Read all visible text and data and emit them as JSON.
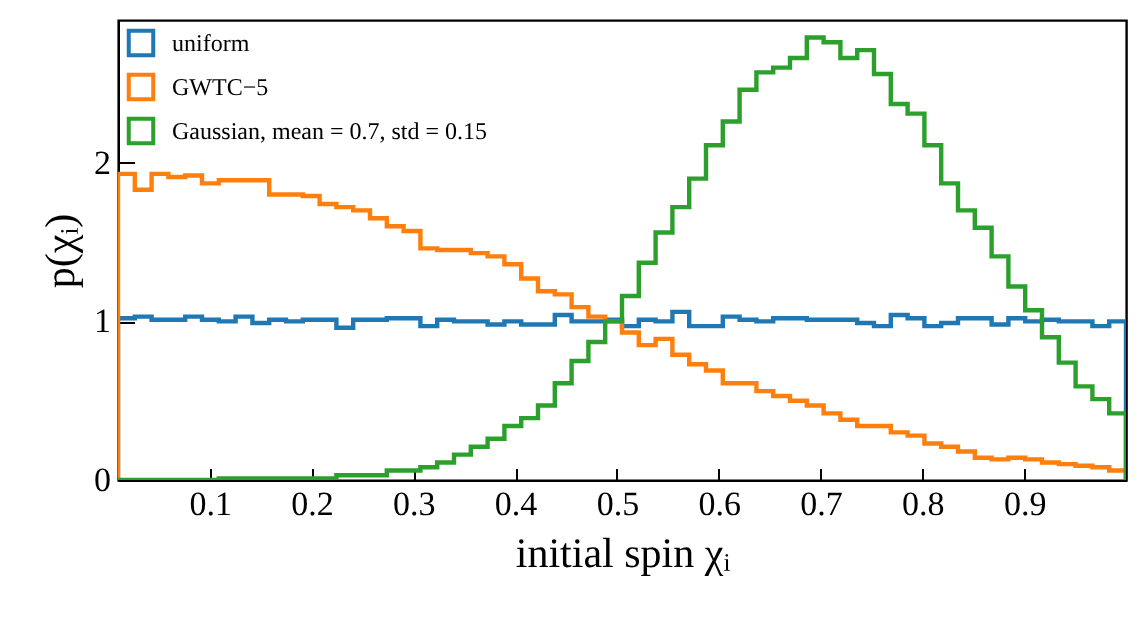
{
  "chart_data": {
    "type": "histogram",
    "xlabel": "initial spin χᵢ",
    "ylabel": "p(χᵢ)",
    "bins": [
      0.01,
      0.0265,
      0.043,
      0.0595,
      0.076,
      0.0925,
      0.109,
      0.1255,
      0.142,
      0.1585,
      0.175,
      0.1915,
      0.208,
      0.2245,
      0.241,
      0.2575,
      0.274,
      0.2905,
      0.307,
      0.3235,
      0.34,
      0.3565,
      0.373,
      0.3895,
      0.406,
      0.4225,
      0.439,
      0.4555,
      0.472,
      0.4885,
      0.505,
      0.5215,
      0.538,
      0.5545,
      0.571,
      0.5875,
      0.604,
      0.6205,
      0.637,
      0.6535,
      0.67,
      0.6865,
      0.703,
      0.7195,
      0.736,
      0.7525,
      0.769,
      0.7855,
      0.802,
      0.8185,
      0.835,
      0.8515,
      0.868,
      0.8845,
      0.901,
      0.9175,
      0.934,
      0.9505,
      0.967,
      0.9835,
      1.0
    ],
    "series": [
      {
        "name": "uniform",
        "color": "#1f77b4",
        "values": [
          1.02,
          1.03,
          1.01,
          1.01,
          1.03,
          1.01,
          1.0,
          1.03,
          0.99,
          1.01,
          1.0,
          1.01,
          1.01,
          0.96,
          1.01,
          1.01,
          1.02,
          1.02,
          0.97,
          1.01,
          1.0,
          1.0,
          0.98,
          1.0,
          0.98,
          0.98,
          1.04,
          1.0,
          1.0,
          1.01,
          0.97,
          1.01,
          1.0,
          1.06,
          0.97,
          0.97,
          1.03,
          1.01,
          1.0,
          1.02,
          1.02,
          1.01,
          1.01,
          1.01,
          0.99,
          0.97,
          1.04,
          1.02,
          0.97,
          0.99,
          1.02,
          1.02,
          0.98,
          1.02,
          1.0,
          1.01,
          1.0,
          1.0,
          0.97,
          1.0
        ]
      },
      {
        "name": "GWTC−5",
        "color": "#ff7f0e",
        "values": [
          1.93,
          1.83,
          1.93,
          1.91,
          1.92,
          1.87,
          1.89,
          1.89,
          1.89,
          1.8,
          1.8,
          1.79,
          1.74,
          1.72,
          1.7,
          1.65,
          1.6,
          1.57,
          1.46,
          1.45,
          1.45,
          1.43,
          1.41,
          1.36,
          1.27,
          1.19,
          1.17,
          1.09,
          1.03,
          1.0,
          0.93,
          0.85,
          0.89,
          0.79,
          0.73,
          0.69,
          0.61,
          0.61,
          0.56,
          0.53,
          0.5,
          0.47,
          0.42,
          0.38,
          0.34,
          0.34,
          0.3,
          0.28,
          0.23,
          0.21,
          0.18,
          0.14,
          0.13,
          0.14,
          0.13,
          0.11,
          0.1,
          0.09,
          0.08,
          0.06
        ]
      },
      {
        "name": "Gaussian, mean = 0.7, std = 0.15",
        "color": "#2ca02c",
        "values": [
          0,
          0,
          0,
          0,
          0,
          0,
          0.01,
          0.01,
          0.01,
          0.01,
          0.01,
          0.01,
          0.01,
          0.03,
          0.03,
          0.03,
          0.06,
          0.06,
          0.08,
          0.11,
          0.16,
          0.21,
          0.26,
          0.34,
          0.39,
          0.47,
          0.61,
          0.75,
          0.87,
          1.0,
          1.16,
          1.37,
          1.56,
          1.72,
          1.9,
          2.11,
          2.26,
          2.46,
          2.57,
          2.6,
          2.66,
          2.79,
          2.76,
          2.66,
          2.71,
          2.56,
          2.37,
          2.31,
          2.11,
          1.87,
          1.7,
          1.59,
          1.41,
          1.22,
          1.07,
          0.9,
          0.74,
          0.59,
          0.51,
          0.42
        ]
      }
    ],
    "xlim": [
      0.01,
      1.0
    ],
    "xticks": [
      0.1,
      0.2,
      0.3,
      0.4,
      0.5,
      0.6,
      0.7,
      0.8,
      0.9
    ],
    "ylim": [
      0,
      2.9
    ],
    "yticks": [
      0,
      1,
      2
    ],
    "grid": false,
    "legend": "top left"
  }
}
